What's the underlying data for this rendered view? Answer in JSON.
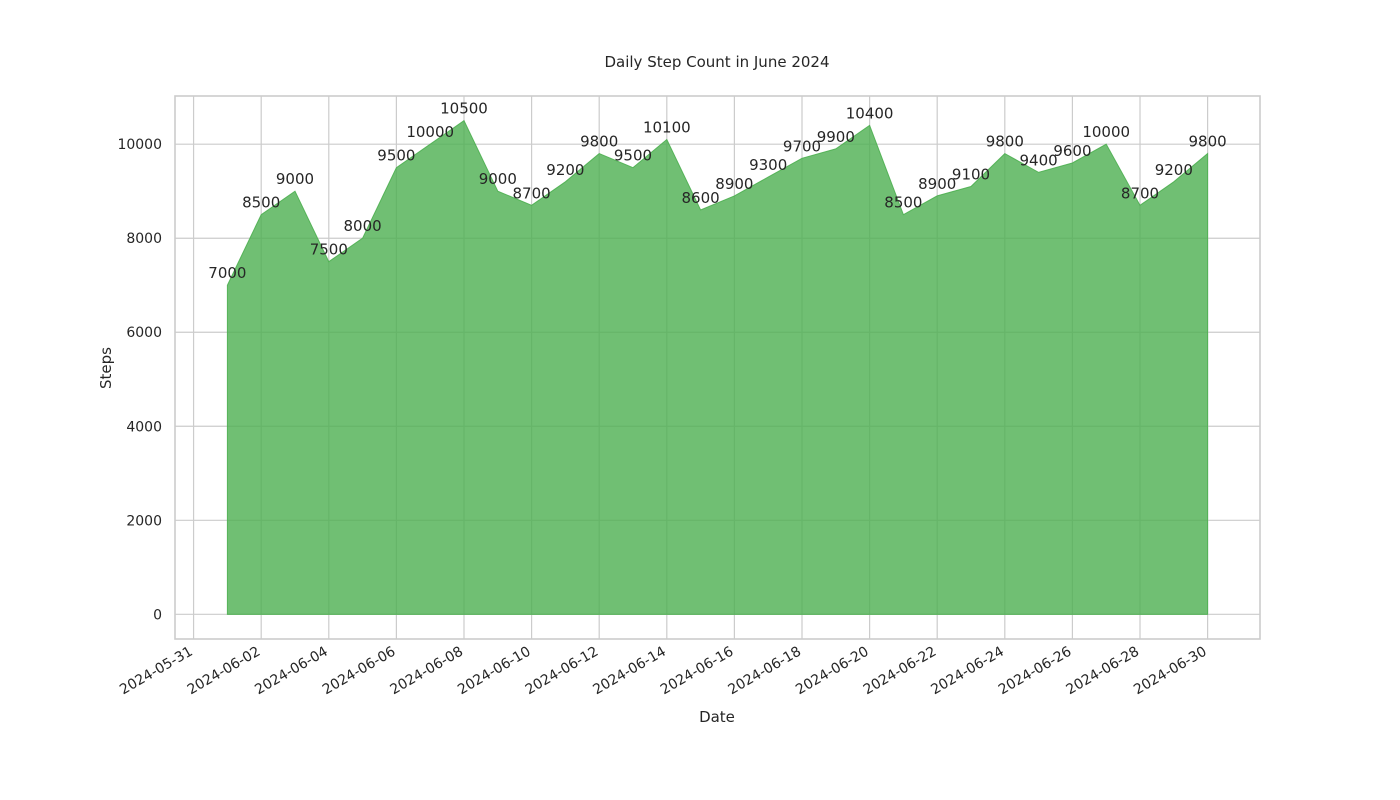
{
  "chart_data": {
    "type": "area",
    "title": "Daily Step Count in June 2024",
    "xlabel": "Date",
    "ylabel": "Steps",
    "x": [
      "2024-06-01",
      "2024-06-02",
      "2024-06-03",
      "2024-06-04",
      "2024-06-05",
      "2024-06-06",
      "2024-06-07",
      "2024-06-08",
      "2024-06-09",
      "2024-06-10",
      "2024-06-11",
      "2024-06-12",
      "2024-06-13",
      "2024-06-14",
      "2024-06-15",
      "2024-06-16",
      "2024-06-17",
      "2024-06-18",
      "2024-06-19",
      "2024-06-20",
      "2024-06-21",
      "2024-06-22",
      "2024-06-23",
      "2024-06-24",
      "2024-06-25",
      "2024-06-26",
      "2024-06-27",
      "2024-06-28",
      "2024-06-29",
      "2024-06-30"
    ],
    "values": [
      7000,
      8500,
      9000,
      7500,
      8000,
      9500,
      10000,
      10500,
      9000,
      8700,
      9200,
      9800,
      9500,
      10100,
      8600,
      8900,
      9300,
      9700,
      9900,
      10400,
      8500,
      8900,
      9100,
      9800,
      9400,
      9600,
      10000,
      8700,
      9200,
      9800
    ],
    "data_labels": [
      "7000",
      "8500",
      "9000",
      "7500",
      "8000",
      "9500",
      "10000",
      "10500",
      "9000",
      "8700",
      "9200",
      "9800",
      "9500",
      "10100",
      "8600",
      "8900",
      "9300",
      "9700",
      "9900",
      "10400",
      "8500",
      "8900",
      "9100",
      "9800",
      "9400",
      "9600",
      "10000",
      "8700",
      "9200",
      "9800"
    ],
    "x_ticks": [
      "2024-05-31",
      "2024-06-02",
      "2024-06-04",
      "2024-06-06",
      "2024-06-08",
      "2024-06-10",
      "2024-06-12",
      "2024-06-14",
      "2024-06-16",
      "2024-06-18",
      "2024-06-20",
      "2024-06-22",
      "2024-06-24",
      "2024-06-26",
      "2024-06-28",
      "2024-06-30"
    ],
    "y_ticks": [
      0,
      2000,
      4000,
      6000,
      8000,
      10000
    ],
    "y_tick_labels": [
      "0",
      "2000",
      "4000",
      "6000",
      "8000",
      "10000"
    ],
    "xlim": [
      "2024-05-30",
      "2024-07-02"
    ],
    "ylim": [
      -525,
      11025
    ],
    "grid": true,
    "fill_color": "#4caf50",
    "fill_opacity": 0.8
  }
}
